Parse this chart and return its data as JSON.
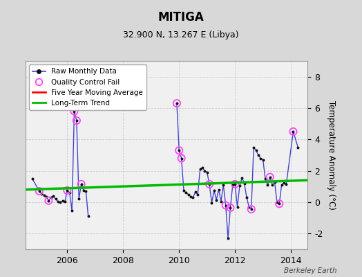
{
  "title": "MITIGA",
  "subtitle": "32.900 N, 13.267 E (Libya)",
  "ylabel": "Temperature Anomaly (°C)",
  "watermark": "Berkeley Earth",
  "background_color": "#d8d8d8",
  "plot_bg_color": "#f0f0f0",
  "ylim": [
    -3,
    9
  ],
  "yticks": [
    -2,
    0,
    2,
    4,
    6,
    8
  ],
  "xlim": [
    2004.5,
    2014.6
  ],
  "xticks": [
    2006,
    2008,
    2010,
    2012,
    2014
  ],
  "raw_color": "#4444cc",
  "raw_marker_color": "#111111",
  "qc_color": "#ff44ff",
  "ma_color": "#ff0000",
  "trend_color": "#00bb00",
  "raw_data": [
    [
      2004.75,
      1.5
    ],
    [
      2005.0,
      0.7
    ],
    [
      2005.083,
      0.55
    ],
    [
      2005.167,
      0.45
    ],
    [
      2005.25,
      0.35
    ],
    [
      2005.333,
      0.1
    ],
    [
      2005.417,
      0.3
    ],
    [
      2005.5,
      0.4
    ],
    [
      2005.583,
      0.2
    ],
    [
      2005.667,
      0.05
    ],
    [
      2005.75,
      0.0
    ],
    [
      2005.833,
      0.1
    ],
    [
      2005.917,
      0.05
    ],
    [
      2006.0,
      0.75
    ],
    [
      2006.083,
      0.6
    ],
    [
      2006.167,
      -0.55
    ],
    [
      2006.25,
      5.8
    ],
    [
      2006.333,
      5.2
    ],
    [
      2006.417,
      0.2
    ],
    [
      2006.5,
      1.15
    ],
    [
      2006.583,
      0.75
    ],
    [
      2006.667,
      0.7
    ],
    [
      2006.75,
      -0.9
    ],
    [
      2009.917,
      6.3
    ],
    [
      2010.0,
      3.3
    ],
    [
      2010.083,
      2.8
    ],
    [
      2010.167,
      0.75
    ],
    [
      2010.25,
      0.6
    ],
    [
      2010.333,
      0.5
    ],
    [
      2010.417,
      0.35
    ],
    [
      2010.5,
      0.3
    ],
    [
      2010.583,
      0.65
    ],
    [
      2010.667,
      0.5
    ],
    [
      2010.75,
      2.1
    ],
    [
      2010.833,
      2.2
    ],
    [
      2010.917,
      2.0
    ],
    [
      2011.0,
      1.9
    ],
    [
      2011.083,
      1.15
    ],
    [
      2011.167,
      -0.05
    ],
    [
      2011.25,
      0.75
    ],
    [
      2011.333,
      0.15
    ],
    [
      2011.417,
      0.8
    ],
    [
      2011.5,
      0.05
    ],
    [
      2011.583,
      1.1
    ],
    [
      2011.667,
      -0.2
    ],
    [
      2011.75,
      -2.3
    ],
    [
      2011.833,
      -0.35
    ],
    [
      2011.917,
      1.1
    ],
    [
      2012.0,
      1.15
    ],
    [
      2012.083,
      -0.3
    ],
    [
      2012.167,
      1.05
    ],
    [
      2012.25,
      1.55
    ],
    [
      2012.333,
      1.2
    ],
    [
      2012.417,
      0.3
    ],
    [
      2012.5,
      -0.3
    ],
    [
      2012.583,
      -0.45
    ],
    [
      2012.667,
      3.5
    ],
    [
      2012.75,
      3.3
    ],
    [
      2012.833,
      3.0
    ],
    [
      2012.917,
      2.8
    ],
    [
      2013.0,
      2.7
    ],
    [
      2013.083,
      1.5
    ],
    [
      2013.167,
      1.1
    ],
    [
      2013.25,
      1.6
    ],
    [
      2013.333,
      1.1
    ],
    [
      2013.417,
      1.3
    ],
    [
      2013.5,
      0.0
    ],
    [
      2013.583,
      -0.1
    ],
    [
      2013.667,
      1.1
    ],
    [
      2013.75,
      1.25
    ],
    [
      2013.833,
      1.15
    ],
    [
      2014.083,
      4.5
    ],
    [
      2014.25,
      3.5
    ]
  ],
  "qc_fail": [
    [
      2005.0,
      0.7
    ],
    [
      2005.333,
      0.1
    ],
    [
      2006.0,
      0.75
    ],
    [
      2006.25,
      5.8
    ],
    [
      2006.333,
      5.2
    ],
    [
      2006.5,
      1.15
    ],
    [
      2009.917,
      6.3
    ],
    [
      2010.0,
      3.3
    ],
    [
      2010.083,
      2.8
    ],
    [
      2011.083,
      1.15
    ],
    [
      2011.667,
      -0.2
    ],
    [
      2011.833,
      -0.35
    ],
    [
      2012.0,
      1.15
    ],
    [
      2012.583,
      -0.45
    ],
    [
      2013.25,
      1.6
    ],
    [
      2013.583,
      -0.1
    ],
    [
      2014.083,
      4.5
    ]
  ],
  "trend_x": [
    2004.5,
    2014.6
  ],
  "trend_y": [
    0.8,
    1.4
  ],
  "disconnected_before": 2009.5
}
